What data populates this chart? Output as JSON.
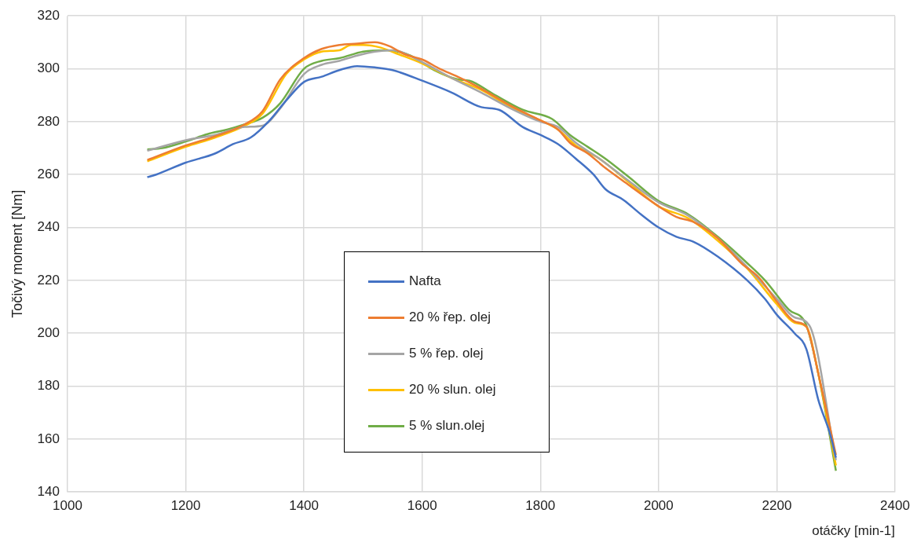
{
  "chart_data": {
    "type": "line",
    "xlabel": "otáčky [min-1]",
    "ylabel": "Točivý moment [Nm]",
    "xlim": [
      1000,
      2400
    ],
    "xticks": [
      1000,
      1200,
      1400,
      1600,
      1800,
      2000,
      2200,
      2400
    ],
    "ylim": [
      140,
      320
    ],
    "yticks": [
      140,
      160,
      180,
      200,
      220,
      240,
      260,
      280,
      300,
      320
    ],
    "grid": true,
    "legend": "center",
    "marker": "none",
    "line_style": "solid",
    "series": [
      {
        "name": "Nafta",
        "color": "#4472c4",
        "x": [
          1135,
          1150,
          1200,
          1250,
          1280,
          1310,
          1340,
          1370,
          1400,
          1430,
          1460,
          1490,
          1520,
          1550,
          1600,
          1650,
          1700,
          1730,
          1770,
          1800,
          1830,
          1860,
          1890,
          1910,
          1940,
          1970,
          2000,
          2030,
          2060,
          2100,
          2150,
          2180,
          2200,
          2230,
          2250,
          2270,
          2290,
          2300
        ],
        "values": [
          259,
          260,
          264.5,
          268,
          271.5,
          274,
          280,
          288,
          295,
          297,
          299.5,
          301,
          300.5,
          299.5,
          295.5,
          291,
          285.5,
          284.5,
          278,
          275,
          271.5,
          266,
          260,
          254.5,
          250.5,
          245,
          240,
          236.5,
          234.5,
          229,
          220,
          213,
          207,
          200,
          194,
          175,
          162,
          153
        ]
      },
      {
        "name": "20 % řep. olej",
        "color": "#ed7d31",
        "x": [
          1135,
          1200,
          1250,
          1300,
          1330,
          1360,
          1400,
          1430,
          1460,
          1490,
          1520,
          1545,
          1570,
          1600,
          1630,
          1660,
          1700,
          1750,
          1800,
          1830,
          1850,
          1880,
          1910,
          1950,
          2000,
          2030,
          2060,
          2100,
          2140,
          2170,
          2200,
          2230,
          2250,
          2270,
          2300
        ],
        "values": [
          265.5,
          271,
          274.5,
          279,
          284,
          296,
          304,
          307.5,
          309,
          309.5,
          310,
          308.5,
          305.5,
          303.5,
          300,
          297,
          292.5,
          286,
          280.5,
          277,
          272,
          268,
          262.5,
          256,
          248,
          244,
          242,
          236,
          226.5,
          221,
          212,
          204.5,
          202.5,
          185,
          154
        ]
      },
      {
        "name": "5 % řep. olej",
        "color": "#a5a5a5",
        "x": [
          1135,
          1200,
          1250,
          1300,
          1330,
          1360,
          1400,
          1430,
          1460,
          1490,
          1520,
          1550,
          1600,
          1650,
          1700,
          1750,
          1800,
          1830,
          1860,
          1900,
          1950,
          2000,
          2050,
          2100,
          2150,
          2200,
          2230,
          2255,
          2300
        ],
        "values": [
          269,
          273,
          275,
          278,
          278.5,
          285,
          298,
          301.5,
          303,
          305,
          306.5,
          307,
          302.5,
          296.5,
          291,
          285,
          280,
          278,
          272,
          266,
          257.5,
          249.5,
          244.5,
          236,
          225,
          213,
          206,
          203,
          152
        ]
      },
      {
        "name": "20 % slun. olej",
        "color": "#ffc000",
        "x": [
          1135,
          1200,
          1250,
          1300,
          1330,
          1370,
          1400,
          1430,
          1460,
          1480,
          1500,
          1530,
          1560,
          1600,
          1650,
          1700,
          1750,
          1800,
          1830,
          1860,
          1900,
          1950,
          2000,
          2050,
          2100,
          2150,
          2200,
          2230,
          2250,
          2270,
          2300
        ],
        "values": [
          265,
          270.5,
          274,
          278.5,
          283,
          298,
          303.5,
          306.5,
          307,
          309,
          309,
          308,
          305.5,
          302,
          296.5,
          292,
          285.5,
          280.5,
          277,
          271,
          266,
          257,
          248,
          243.5,
          235,
          224.5,
          211,
          204,
          202.5,
          185,
          150
        ]
      },
      {
        "name": "5 % slun.olej",
        "color": "#70ad47",
        "x": [
          1135,
          1160,
          1200,
          1240,
          1270,
          1300,
          1330,
          1360,
          1400,
          1430,
          1460,
          1500,
          1540,
          1580,
          1620,
          1660,
          1680,
          1720,
          1770,
          1820,
          1850,
          1880,
          1910,
          1950,
          2000,
          2050,
          2100,
          2150,
          2180,
          2220,
          2250,
          2270,
          2300
        ],
        "values": [
          269.5,
          270,
          272.5,
          275.5,
          277,
          279,
          281.5,
          287,
          300,
          303,
          304,
          306.5,
          307,
          305,
          299.5,
          296,
          295.5,
          290.5,
          284.5,
          281,
          275,
          270.5,
          266,
          259,
          250,
          245,
          236.5,
          226.5,
          220,
          209,
          203,
          185,
          148
        ]
      }
    ]
  }
}
